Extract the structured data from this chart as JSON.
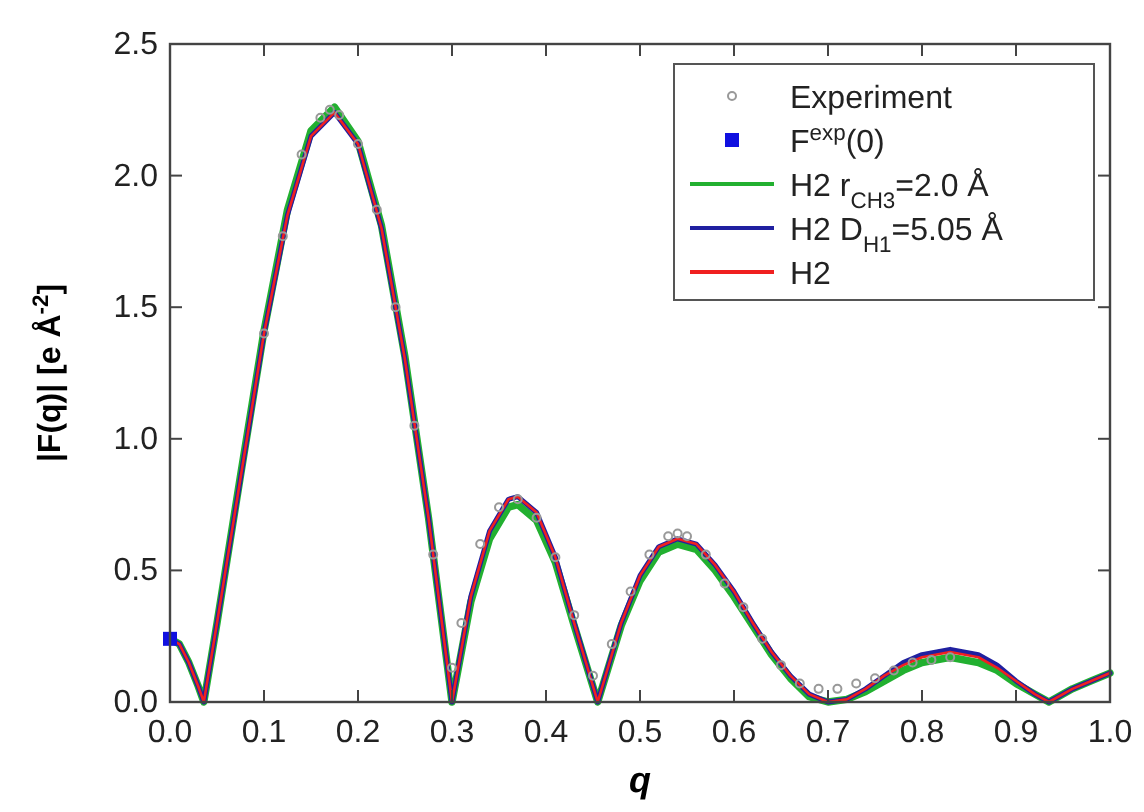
{
  "chart_data": {
    "type": "line",
    "xlabel": "q",
    "ylabel": "|F(q)| [e Å$^{-2}$]",
    "xlim": [
      0,
      1.0
    ],
    "ylim": [
      0,
      2.5
    ],
    "xticks": [
      {
        "value": 0,
        "label": "0.0"
      },
      0.1,
      0.2,
      0.3,
      0.4,
      0.5,
      0.6,
      0.7,
      0.8,
      0.9,
      {
        "value": 1,
        "label": "1.0"
      }
    ],
    "yticks": [
      {
        "value": 0,
        "label": "0.0"
      },
      0.5,
      {
        "value": 1,
        "label": "1.0"
      },
      1.5,
      {
        "value": 2,
        "label": "2.0"
      },
      2.5
    ],
    "grid": false,
    "legend": "top right",
    "series": [
      {
        "name": "Experiment",
        "type": "scatter",
        "marker": "circle",
        "color": "#999999",
        "x": [
          0.1,
          0.12,
          0.14,
          0.16,
          0.17,
          0.18,
          0.2,
          0.22,
          0.24,
          0.26,
          0.28,
          0.3,
          0.31,
          0.33,
          0.35,
          0.37,
          0.39,
          0.41,
          0.43,
          0.45,
          0.47,
          0.49,
          0.51,
          0.53,
          0.54,
          0.55,
          0.57,
          0.59,
          0.61,
          0.63,
          0.65,
          0.67,
          0.69,
          0.71,
          0.73,
          0.75,
          0.77,
          0.79,
          0.81,
          0.83
        ],
        "values": [
          1.4,
          1.77,
          2.08,
          2.22,
          2.25,
          2.23,
          2.12,
          1.87,
          1.5,
          1.05,
          0.56,
          0.13,
          0.3,
          0.6,
          0.74,
          0.77,
          0.7,
          0.55,
          0.33,
          0.1,
          0.22,
          0.42,
          0.56,
          0.63,
          0.64,
          0.63,
          0.56,
          0.45,
          0.36,
          0.24,
          0.14,
          0.07,
          0.05,
          0.05,
          0.07,
          0.09,
          0.12,
          0.15,
          0.16,
          0.17
        ]
      },
      {
        "name": "F$^{exp}$(0)",
        "type": "scatter",
        "marker": "square",
        "color": "#1010e0",
        "x": [
          0
        ],
        "values": [
          0.24
        ]
      },
      {
        "name": "H2 r$_{CH3}$=2.0 Å",
        "color": "#22b030",
        "x": [
          0,
          0.01,
          0.02,
          0.03,
          0.036,
          0.05,
          0.075,
          0.1,
          0.125,
          0.15,
          0.175,
          0.2,
          0.225,
          0.25,
          0.275,
          0.3,
          0.32,
          0.34,
          0.36,
          0.37,
          0.39,
          0.41,
          0.43,
          0.455,
          0.48,
          0.5,
          0.52,
          0.54,
          0.56,
          0.58,
          0.6,
          0.62,
          0.64,
          0.66,
          0.68,
          0.7,
          0.72,
          0.74,
          0.76,
          0.78,
          0.8,
          0.83,
          0.86,
          0.88,
          0.9,
          0.92,
          0.935,
          0.96,
          0.98,
          1.0
        ],
        "values": [
          0.24,
          0.22,
          0.15,
          0.06,
          0,
          0.3,
          0.86,
          1.41,
          1.87,
          2.17,
          2.26,
          2.13,
          1.81,
          1.31,
          0.7,
          0,
          0.38,
          0.62,
          0.74,
          0.75,
          0.69,
          0.53,
          0.29,
          0,
          0.29,
          0.46,
          0.57,
          0.6,
          0.58,
          0.5,
          0.4,
          0.29,
          0.18,
          0.09,
          0.02,
          0,
          0.01,
          0.04,
          0.08,
          0.12,
          0.15,
          0.17,
          0.15,
          0.12,
          0.07,
          0.03,
          0,
          0.05,
          0.08,
          0.11
        ]
      },
      {
        "name": "H2 D$_{H1}$=5.05 Å",
        "color": "#2020a0",
        "x": [
          0,
          0.01,
          0.02,
          0.03,
          0.036,
          0.05,
          0.075,
          0.1,
          0.125,
          0.15,
          0.175,
          0.2,
          0.225,
          0.25,
          0.275,
          0.3,
          0.32,
          0.34,
          0.36,
          0.37,
          0.39,
          0.41,
          0.43,
          0.455,
          0.48,
          0.5,
          0.52,
          0.54,
          0.56,
          0.58,
          0.6,
          0.62,
          0.64,
          0.66,
          0.68,
          0.7,
          0.72,
          0.74,
          0.76,
          0.78,
          0.8,
          0.83,
          0.86,
          0.88,
          0.9,
          0.92,
          0.935,
          0.96,
          0.98,
          1.0
        ],
        "values": [
          0.24,
          0.22,
          0.15,
          0.06,
          0,
          0.3,
          0.85,
          1.4,
          1.85,
          2.15,
          2.24,
          2.12,
          1.8,
          1.3,
          0.7,
          0,
          0.4,
          0.65,
          0.77,
          0.78,
          0.72,
          0.55,
          0.3,
          0,
          0.3,
          0.48,
          0.59,
          0.62,
          0.6,
          0.52,
          0.42,
          0.3,
          0.19,
          0.1,
          0.03,
          0,
          0.01,
          0.05,
          0.1,
          0.15,
          0.18,
          0.2,
          0.18,
          0.14,
          0.08,
          0.03,
          0,
          0.05,
          0.08,
          0.11
        ]
      },
      {
        "name": "H2",
        "color": "#f02020",
        "x": [
          0,
          0.01,
          0.02,
          0.03,
          0.036,
          0.05,
          0.075,
          0.1,
          0.125,
          0.15,
          0.175,
          0.2,
          0.225,
          0.25,
          0.275,
          0.3,
          0.32,
          0.34,
          0.36,
          0.37,
          0.39,
          0.41,
          0.43,
          0.455,
          0.48,
          0.5,
          0.52,
          0.54,
          0.56,
          0.58,
          0.6,
          0.62,
          0.64,
          0.66,
          0.68,
          0.7,
          0.72,
          0.74,
          0.76,
          0.78,
          0.8,
          0.83,
          0.86,
          0.88,
          0.9,
          0.92,
          0.935,
          0.96,
          0.98,
          1.0
        ],
        "values": [
          0.24,
          0.22,
          0.15,
          0.06,
          0,
          0.3,
          0.85,
          1.4,
          1.85,
          2.15,
          2.24,
          2.12,
          1.8,
          1.3,
          0.7,
          0,
          0.4,
          0.65,
          0.77,
          0.78,
          0.72,
          0.55,
          0.3,
          0,
          0.3,
          0.48,
          0.59,
          0.62,
          0.6,
          0.52,
          0.42,
          0.3,
          0.19,
          0.1,
          0.03,
          0,
          0.01,
          0.05,
          0.1,
          0.14,
          0.17,
          0.19,
          0.17,
          0.13,
          0.08,
          0.03,
          0,
          0.05,
          0.08,
          0.11
        ]
      }
    ]
  }
}
